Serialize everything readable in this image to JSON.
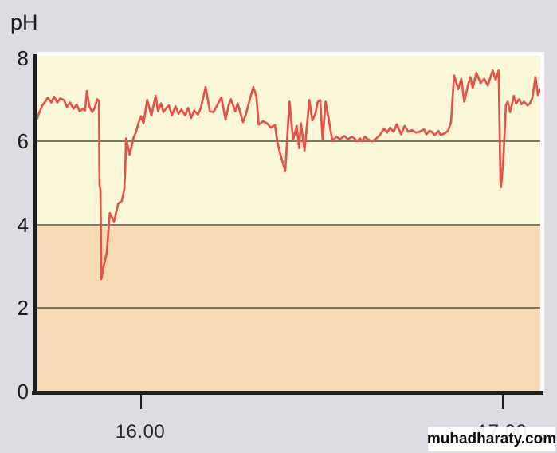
{
  "page": {
    "watermark_text": "muhadharaty.com"
  },
  "colors": {
    "background": "#dcdce2",
    "plot_upper_zone": "#fbf8d9",
    "plot_lower_zone": "#f9dab6",
    "line": "#e2544a",
    "gridline": "#73735c",
    "axis": "#1e1e1c",
    "text": "#1d1d1b"
  },
  "chart_data": {
    "type": "line",
    "title": "",
    "ylabel": "pH",
    "xlabel": "",
    "ylim": [
      0,
      8
    ],
    "yticks": [
      8,
      6,
      4,
      2,
      0
    ],
    "gridlines_at": [
      6,
      4,
      2
    ],
    "zones": [
      {
        "name": "safe-zone",
        "from": 4,
        "to": 8,
        "color": "#fbf8d9"
      },
      {
        "name": "critical-zone",
        "from": 0,
        "to": 4,
        "color": "#f9dab6"
      }
    ],
    "x_span_minutes": 83.4,
    "xticks": [
      {
        "t": 17.05,
        "label": "16.00"
      },
      {
        "t": 77.06,
        "label": "17.00"
      }
    ],
    "legend": null,
    "series": [
      {
        "name": "pH",
        "color": "#e2544a",
        "points": [
          [
            0.0,
            6.55
          ],
          [
            0.1,
            6.62
          ],
          [
            0.8,
            6.86
          ],
          [
            1.3,
            6.95
          ],
          [
            1.7,
            7.05
          ],
          [
            2.3,
            6.93
          ],
          [
            2.8,
            7.07
          ],
          [
            3.3,
            6.93
          ],
          [
            3.8,
            7.03
          ],
          [
            4.4,
            6.99
          ],
          [
            4.9,
            6.82
          ],
          [
            5.4,
            6.93
          ],
          [
            6.0,
            6.78
          ],
          [
            6.5,
            6.88
          ],
          [
            7.0,
            6.72
          ],
          [
            7.5,
            6.78
          ],
          [
            7.9,
            6.74
          ],
          [
            8.2,
            7.21
          ],
          [
            8.6,
            6.84
          ],
          [
            9.1,
            6.7
          ],
          [
            9.5,
            6.8
          ],
          [
            9.9,
            7.01
          ],
          [
            10.2,
            6.97
          ],
          [
            10.3,
            4.95
          ],
          [
            10.45,
            4.84
          ],
          [
            10.6,
            2.7
          ],
          [
            11.0,
            3.01
          ],
          [
            11.2,
            3.14
          ],
          [
            11.5,
            3.34
          ],
          [
            12.0,
            4.28
          ],
          [
            12.7,
            4.08
          ],
          [
            13.4,
            4.51
          ],
          [
            14.0,
            4.57
          ],
          [
            14.4,
            4.86
          ],
          [
            14.55,
            5.29
          ],
          [
            14.7,
            6.07
          ],
          [
            15.3,
            5.68
          ],
          [
            15.9,
            6.07
          ],
          [
            16.3,
            6.21
          ],
          [
            16.8,
            6.46
          ],
          [
            17.2,
            6.6
          ],
          [
            17.6,
            6.43
          ],
          [
            18.2,
            6.99
          ],
          [
            18.9,
            6.62
          ],
          [
            19.6,
            7.09
          ],
          [
            20.0,
            6.72
          ],
          [
            20.5,
            6.91
          ],
          [
            20.9,
            6.7
          ],
          [
            21.4,
            6.8
          ],
          [
            21.8,
            6.86
          ],
          [
            22.3,
            6.62
          ],
          [
            22.9,
            6.84
          ],
          [
            23.4,
            6.66
          ],
          [
            23.9,
            6.76
          ],
          [
            24.5,
            6.62
          ],
          [
            25.0,
            6.8
          ],
          [
            25.5,
            6.56
          ],
          [
            26.0,
            6.74
          ],
          [
            26.6,
            6.64
          ],
          [
            27.1,
            6.8
          ],
          [
            27.9,
            7.3
          ],
          [
            28.6,
            6.72
          ],
          [
            29.2,
            6.7
          ],
          [
            29.9,
            6.89
          ],
          [
            30.5,
            7.05
          ],
          [
            31.2,
            6.52
          ],
          [
            31.7,
            6.86
          ],
          [
            32.1,
            7.01
          ],
          [
            32.8,
            6.72
          ],
          [
            33.2,
            6.91
          ],
          [
            33.7,
            6.66
          ],
          [
            34.1,
            6.46
          ],
          [
            34.6,
            6.66
          ],
          [
            35.2,
            6.99
          ],
          [
            35.8,
            7.3
          ],
          [
            36.3,
            7.09
          ],
          [
            36.7,
            6.4
          ],
          [
            37.4,
            6.48
          ],
          [
            38.1,
            6.43
          ],
          [
            38.7,
            6.33
          ],
          [
            39.4,
            6.39
          ],
          [
            39.8,
            5.98
          ],
          [
            40.3,
            5.68
          ],
          [
            41.1,
            5.29
          ],
          [
            41.8,
            6.95
          ],
          [
            42.4,
            6.04
          ],
          [
            43.0,
            6.37
          ],
          [
            43.4,
            5.84
          ],
          [
            43.7,
            6.43
          ],
          [
            44.3,
            5.78
          ],
          [
            45.1,
            6.99
          ],
          [
            45.6,
            6.5
          ],
          [
            46.1,
            6.66
          ],
          [
            46.5,
            6.95
          ],
          [
            46.9,
            6.99
          ],
          [
            47.3,
            6.04
          ],
          [
            47.8,
            6.95
          ],
          [
            48.4,
            6.46
          ],
          [
            48.9,
            6.02
          ],
          [
            49.6,
            6.11
          ],
          [
            50.2,
            6.05
          ],
          [
            50.9,
            6.13
          ],
          [
            51.5,
            6.05
          ],
          [
            52.1,
            6.11
          ],
          [
            52.6,
            6.07
          ],
          [
            53.0,
            6.0
          ],
          [
            53.5,
            6.07
          ],
          [
            53.9,
            6.0
          ],
          [
            54.3,
            6.11
          ],
          [
            54.8,
            6.05
          ],
          [
            55.5,
            6.0
          ],
          [
            56.2,
            6.07
          ],
          [
            56.8,
            6.15
          ],
          [
            57.5,
            6.31
          ],
          [
            58.0,
            6.21
          ],
          [
            58.5,
            6.33
          ],
          [
            59.1,
            6.23
          ],
          [
            59.6,
            6.41
          ],
          [
            60.3,
            6.17
          ],
          [
            60.9,
            6.37
          ],
          [
            61.5,
            6.23
          ],
          [
            62.1,
            6.27
          ],
          [
            62.8,
            6.21
          ],
          [
            63.4,
            6.23
          ],
          [
            64.1,
            6.29
          ],
          [
            64.5,
            6.17
          ],
          [
            65.0,
            6.25
          ],
          [
            65.4,
            6.23
          ],
          [
            65.9,
            6.15
          ],
          [
            66.5,
            6.25
          ],
          [
            66.9,
            6.15
          ],
          [
            67.5,
            6.19
          ],
          [
            68.1,
            6.25
          ],
          [
            68.6,
            6.46
          ],
          [
            69.1,
            7.58
          ],
          [
            69.8,
            7.25
          ],
          [
            70.3,
            7.5
          ],
          [
            70.8,
            6.95
          ],
          [
            71.4,
            7.34
          ],
          [
            71.8,
            7.54
          ],
          [
            72.2,
            7.28
          ],
          [
            72.8,
            7.64
          ],
          [
            73.5,
            7.4
          ],
          [
            74.1,
            7.5
          ],
          [
            74.7,
            7.34
          ],
          [
            75.5,
            7.7
          ],
          [
            76.0,
            7.48
          ],
          [
            76.5,
            7.7
          ],
          [
            76.8,
            5.0
          ],
          [
            76.9,
            4.9
          ],
          [
            77.3,
            5.63
          ],
          [
            77.7,
            6.86
          ],
          [
            78.0,
            6.95
          ],
          [
            78.4,
            6.7
          ],
          [
            78.8,
            6.95
          ],
          [
            79.0,
            7.09
          ],
          [
            79.4,
            6.91
          ],
          [
            79.9,
            7.01
          ],
          [
            80.3,
            6.89
          ],
          [
            80.7,
            6.95
          ],
          [
            81.3,
            6.86
          ],
          [
            81.7,
            6.91
          ],
          [
            82.1,
            7.05
          ],
          [
            82.6,
            7.54
          ],
          [
            83.0,
            7.11
          ],
          [
            83.4,
            7.25
          ]
        ]
      }
    ]
  }
}
